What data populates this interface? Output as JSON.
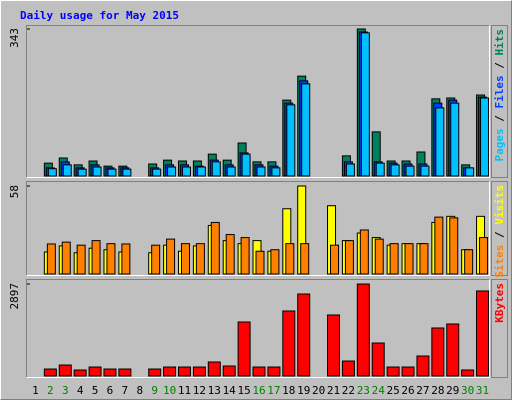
{
  "chart_data": [
    {
      "type": "bar",
      "title": "Daily usage for May 2015",
      "categories": [
        "1",
        "2",
        "3",
        "4",
        "5",
        "6",
        "7",
        "8",
        "9",
        "10",
        "11",
        "12",
        "13",
        "14",
        "15",
        "16",
        "17",
        "18",
        "19",
        "20",
        "21",
        "22",
        "23",
        "24",
        "25",
        "26",
        "27",
        "28",
        "29",
        "30",
        "31"
      ],
      "ylim": [
        0,
        343
      ],
      "yticks": [
        343
      ],
      "legend_separator": "/",
      "series": [
        {
          "name": "Hits",
          "color": "#00805c",
          "values": [
            0,
            30,
            42,
            26,
            35,
            23,
            23,
            0,
            28,
            37,
            35,
            35,
            51,
            37,
            77,
            33,
            33,
            177,
            233,
            0,
            0,
            47,
            343,
            103,
            35,
            35,
            56,
            180,
            182,
            26,
            189
          ]
        },
        {
          "name": "Files",
          "color": "#0040ff",
          "values": [
            0,
            19,
            33,
            19,
            26,
            19,
            19,
            0,
            19,
            26,
            26,
            23,
            37,
            26,
            54,
            26,
            23,
            170,
            222,
            0,
            0,
            33,
            336,
            33,
            30,
            28,
            28,
            170,
            177,
            19,
            184
          ]
        },
        {
          "name": "Pages",
          "color": "#00c0ff",
          "values": [
            0,
            17,
            26,
            16,
            21,
            16,
            16,
            0,
            16,
            21,
            21,
            21,
            33,
            21,
            51,
            21,
            19,
            166,
            215,
            0,
            0,
            28,
            334,
            30,
            26,
            23,
            23,
            159,
            170,
            19,
            182
          ]
        }
      ]
    },
    {
      "type": "bar",
      "categories": [
        "1",
        "2",
        "3",
        "4",
        "5",
        "6",
        "7",
        "8",
        "9",
        "10",
        "11",
        "12",
        "13",
        "14",
        "15",
        "16",
        "17",
        "18",
        "19",
        "20",
        "21",
        "22",
        "23",
        "24",
        "25",
        "26",
        "27",
        "28",
        "29",
        "30",
        "31"
      ],
      "ylim": [
        0,
        58
      ],
      "yticks": [
        58
      ],
      "legend_separator": "/",
      "series": [
        {
          "name": "Visits",
          "color": "#ffff00",
          "values": [
            0,
            14.5,
            18.5,
            14,
            17,
            16,
            14.5,
            0,
            14,
            19,
            15,
            18.5,
            32,
            22,
            20,
            22,
            15,
            43,
            58,
            0,
            45,
            22,
            27,
            24,
            19,
            20,
            20,
            34,
            38,
            16,
            38
          ]
        },
        {
          "name": "Sites",
          "color": "#ff8000",
          "values": [
            0,
            19.8,
            21,
            19,
            22,
            20,
            19.8,
            0,
            19,
            23,
            20,
            20,
            34,
            26,
            24,
            15,
            16,
            20,
            20,
            0,
            19,
            22,
            29,
            23,
            20,
            20,
            20,
            37.5,
            37,
            16,
            24
          ]
        }
      ]
    },
    {
      "type": "bar",
      "categories": [
        "1",
        "2",
        "3",
        "4",
        "5",
        "6",
        "7",
        "8",
        "9",
        "10",
        "11",
        "12",
        "13",
        "14",
        "15",
        "16",
        "17",
        "18",
        "19",
        "20",
        "21",
        "22",
        "23",
        "24",
        "25",
        "26",
        "27",
        "28",
        "29",
        "30",
        "31"
      ],
      "category_colors": [
        "#000000",
        "#008000",
        "#008000",
        "#000000",
        "#000000",
        "#000000",
        "#000000",
        "#000000",
        "#008000",
        "#008000",
        "#000000",
        "#000000",
        "#000000",
        "#000000",
        "#000000",
        "#008000",
        "#008000",
        "#000000",
        "#000000",
        "#000000",
        "#000000",
        "#000000",
        "#008000",
        "#008000",
        "#000000",
        "#000000",
        "#000000",
        "#000000",
        "#000000",
        "#008000",
        "#008000"
      ],
      "ylim": [
        0,
        2897
      ],
      "yticks": [
        2897
      ],
      "series": [
        {
          "name": "KBytes",
          "color": "#ff0000",
          "values": [
            0,
            220,
            346,
            189,
            283,
            220,
            220,
            0,
            220,
            283,
            283,
            283,
            441,
            315,
            1700,
            283,
            283,
            2047,
            2582,
            0,
            1921,
            472,
            2897,
            1039,
            283,
            283,
            630,
            1512,
            1638,
            189,
            2677
          ]
        }
      ]
    }
  ]
}
